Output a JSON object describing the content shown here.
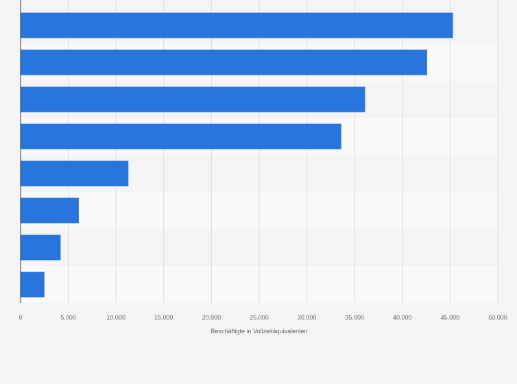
{
  "chart_data": {
    "type": "bar",
    "orientation": "horizontal",
    "title": "",
    "xlabel": "Beschäftigte in Vollzeitäquivalenten",
    "ylabel": "",
    "xlim": [
      0,
      50000
    ],
    "x_ticks": [
      0,
      5000,
      10000,
      15000,
      20000,
      25000,
      30000,
      35000,
      40000,
      45000,
      50000
    ],
    "x_tick_labels": [
      "0",
      "5.000",
      "10.000",
      "15.000",
      "20.000",
      "25.000",
      "30.000",
      "35.000",
      "40.000",
      "45.000",
      "50.000"
    ],
    "categories": [
      "",
      "",
      "",
      "",
      "",
      "",
      "",
      ""
    ],
    "values": [
      45300,
      42600,
      36100,
      33600,
      11300,
      6100,
      4200,
      2500
    ],
    "grid": true,
    "legend": "none",
    "colors": {
      "bar": "#2876dd",
      "background": "#f4f4f4",
      "row_alt": "#f9f9f9",
      "grid": "#dddddd",
      "axis": "#333333",
      "text": "#666666"
    }
  }
}
